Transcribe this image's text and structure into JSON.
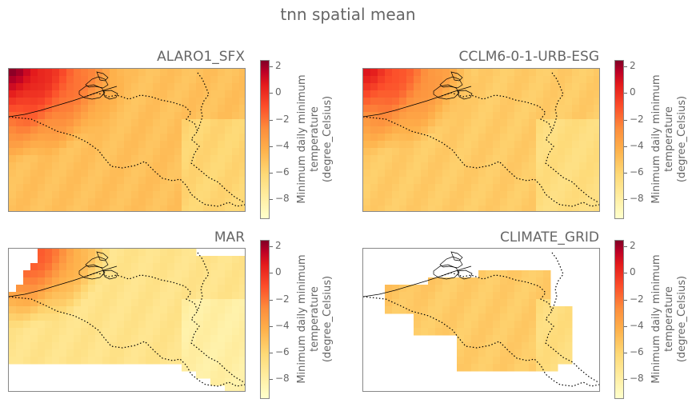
{
  "figure": {
    "title": "tnn spatial mean"
  },
  "colorbar": {
    "label_line1": "Minimum daily minimum",
    "label_line2": "temperature",
    "label_line3": "(degree_Celsius)",
    "ticks": [
      "2",
      "0",
      "−2",
      "−4",
      "−6",
      "−8"
    ],
    "tick_values": [
      2,
      0,
      -2,
      -4,
      -6,
      -8
    ],
    "range": [
      -9.5,
      2.5
    ],
    "colormap": "YlOrRd"
  },
  "panels": [
    {
      "id": "alaro",
      "title": "ALARO1_SFX"
    },
    {
      "id": "cclm",
      "title": "CCLM6-0-1-URB-ESG"
    },
    {
      "id": "mar",
      "title": "MAR"
    },
    {
      "id": "grid",
      "title": "CLIMATE_GRID"
    }
  ],
  "chart_data": [
    {
      "type": "heatmap",
      "title": "ALARO1_SFX",
      "variable": "tnn spatial mean",
      "colorbar_label": "Minimum daily minimum temperature (degree_Celsius)",
      "vmin": -9.5,
      "vmax": 2.5,
      "values_range": [
        -7,
        2.5
      ],
      "coast_max": 2.5,
      "inland_typical": -5
    },
    {
      "type": "heatmap",
      "title": "CCLM6-0-1-URB-ESG",
      "variable": "tnn spatial mean",
      "colorbar_label": "Minimum daily minimum temperature (degree_Celsius)",
      "vmin": -9.5,
      "vmax": 2.5,
      "values_range": [
        -8,
        1
      ],
      "coast_max": 1,
      "inland_typical": -5.5
    },
    {
      "type": "heatmap",
      "title": "MAR",
      "variable": "tnn spatial mean",
      "colorbar_label": "Minimum daily minimum temperature (degree_Celsius)",
      "vmin": -9.5,
      "vmax": 2.5,
      "values_range": [
        -8.5,
        1.5
      ],
      "coast_max": 1.5,
      "inland_typical": -7
    },
    {
      "type": "heatmap",
      "title": "CLIMATE_GRID",
      "variable": "tnn spatial mean",
      "colorbar_label": "Minimum daily minimum temperature (degree_Celsius)",
      "vmin": -9.5,
      "vmax": 2.5,
      "values_range": [
        -8,
        -4.5
      ],
      "inland_typical": -5.5
    }
  ]
}
